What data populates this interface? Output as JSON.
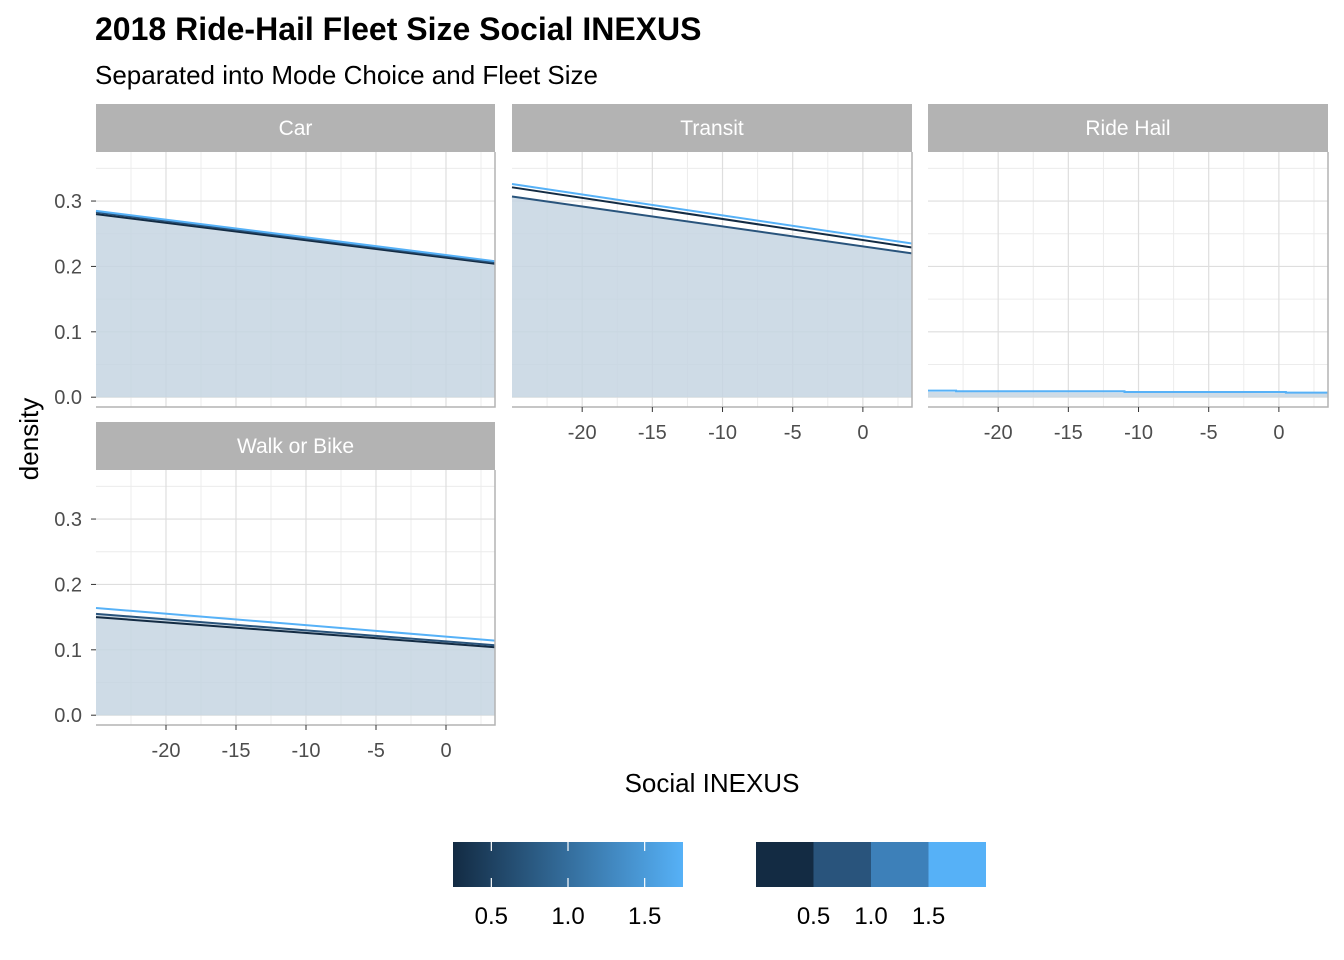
{
  "chart_data": {
    "type": "area",
    "title": "2018 Ride-Hail Fleet Size Social INEXUS",
    "subtitle": "Separated into Mode Choice and Fleet Size",
    "xlabel": "Social INEXUS",
    "ylabel": "density",
    "xlim": [
      -25,
      3.5
    ],
    "ylim": [
      -0.015,
      0.375
    ],
    "x_ticks": [
      -20,
      -15,
      -10,
      -5,
      0
    ],
    "x_tick_labels": [
      "-20",
      "-15",
      "-10",
      "-5",
      "0"
    ],
    "y_ticks": [
      0.0,
      0.1,
      0.2,
      0.3
    ],
    "y_tick_labels": [
      "0.0",
      "0.1",
      "0.2",
      "0.3"
    ],
    "grid": true,
    "legend_position": "bottom",
    "colors": {
      "strip": "#b3b3b3",
      "grid": "#dedede",
      "fill": "#c6d5e2",
      "fleet_0_5": "#132b43",
      "fleet_1_0": "#29547c",
      "fleet_1_5": "#56b1f7"
    },
    "facets": [
      {
        "name": "Car",
        "series": [
          {
            "fleet": 0.5,
            "x": [
              -25,
              3.5
            ],
            "y": [
              0.28,
              0.204
            ]
          },
          {
            "fleet": 1.0,
            "x": [
              -25,
              3.5
            ],
            "y": [
              0.283,
              0.206
            ]
          },
          {
            "fleet": 1.5,
            "x": [
              -25,
              3.5
            ],
            "y": [
              0.285,
              0.208
            ]
          }
        ],
        "area": {
          "x": [
            -25,
            3.5
          ],
          "y": [
            0.282,
            0.205
          ]
        }
      },
      {
        "name": "Transit",
        "series": [
          {
            "fleet": 0.5,
            "x": [
              -25,
              3.5
            ],
            "y": [
              0.321,
              0.229
            ]
          },
          {
            "fleet": 1.0,
            "x": [
              -25,
              3.5
            ],
            "y": [
              0.307,
              0.22
            ]
          },
          {
            "fleet": 1.5,
            "x": [
              -25,
              3.5
            ],
            "y": [
              0.326,
              0.235
            ]
          }
        ],
        "area": {
          "x": [
            -25,
            3.5
          ],
          "y": [
            0.307,
            0.22
          ]
        }
      },
      {
        "name": "Ride Hail",
        "series": [
          {
            "fleet": 1.5,
            "x": [
              -25,
              -23,
              -23,
              -11,
              -11,
              0.5,
              0.5,
              3.5
            ],
            "y": [
              0.01,
              0.01,
              0.009,
              0.009,
              0.008,
              0.008,
              0.007,
              0.007
            ]
          }
        ],
        "area": {
          "x": [
            -25,
            3.5
          ],
          "y": [
            0.008,
            0.006
          ]
        }
      },
      {
        "name": "Walk or Bike",
        "series": [
          {
            "fleet": 0.5,
            "x": [
              -25,
              3.5
            ],
            "y": [
              0.15,
              0.104
            ]
          },
          {
            "fleet": 1.0,
            "x": [
              -25,
              3.5
            ],
            "y": [
              0.155,
              0.107
            ]
          },
          {
            "fleet": 1.5,
            "x": [
              -25,
              3.5
            ],
            "y": [
              0.164,
              0.114
            ]
          }
        ],
        "area": {
          "x": [
            -25,
            3.5
          ],
          "y": [
            0.155,
            0.107
          ]
        }
      }
    ],
    "legends": [
      {
        "kind": "continuous",
        "range": [
          0.25,
          1.75
        ],
        "ticks": [
          0.5,
          1.0,
          1.5
        ],
        "tick_labels": [
          "0.5",
          "1.0",
          "1.5"
        ]
      },
      {
        "kind": "discrete",
        "bins": [
          0.25,
          0.75,
          1.25,
          1.75,
          2.25
        ],
        "tick_labels": [
          "0.5",
          "1.0",
          "1.5"
        ]
      }
    ]
  }
}
